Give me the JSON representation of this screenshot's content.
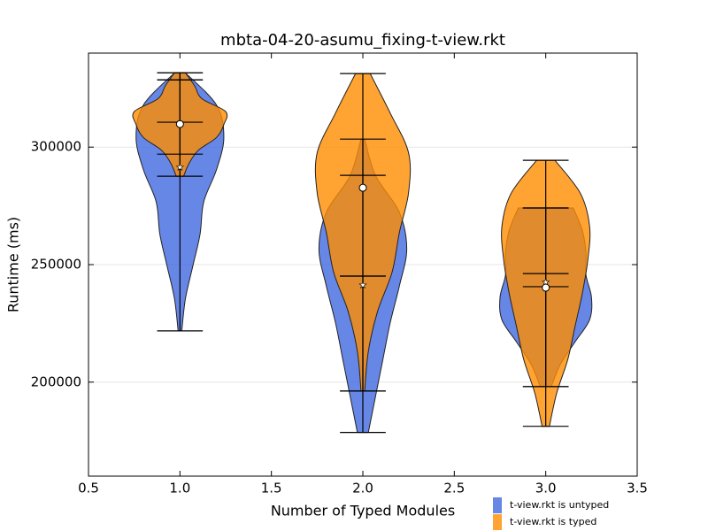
{
  "chart_data": {
    "type": "violin",
    "title": "mbta-04-20-asumu_fixing-t-view.rkt",
    "xlabel": "Number of Typed Modules",
    "ylabel": "Runtime (ms)",
    "xlim": [
      0.5,
      3.5
    ],
    "xticks": [
      {
        "value": 0.5,
        "label": "0.5"
      },
      {
        "value": 1,
        "label": "1.0"
      },
      {
        "value": 1.5,
        "label": "1.5"
      },
      {
        "value": 2,
        "label": "2.0"
      },
      {
        "value": 2.5,
        "label": "2.5"
      },
      {
        "value": 3,
        "label": "3.0"
      },
      {
        "value": 3.5,
        "label": "3.5"
      }
    ],
    "ylim": [
      160000,
      340000
    ],
    "yticks": [
      200000,
      250000,
      300000
    ],
    "grid": true,
    "positions": [
      1,
      2,
      3
    ],
    "series": [
      {
        "name": "t-view.rkt is untyped",
        "color": "#4169e1",
        "marker": "star",
        "min": [
          221800,
          178600,
          198100
        ],
        "max": [
          331600,
          303400,
          274100
        ],
        "lower": [
          297000,
          196200,
          240600
        ],
        "upper": [
          328600,
          245100,
          246200
        ],
        "mean": [
          291400,
          241300,
          242500
        ],
        "profile": [
          [
            0.01,
            0.03,
            0.07,
            0.11,
            0.13,
            0.2,
            0.24,
            0.2,
            0.03
          ],
          [
            0.03,
            0.07,
            0.11,
            0.15,
            0.2,
            0.24,
            0.2,
            0.07,
            0.01
          ],
          [
            0.03,
            0.08,
            0.16,
            0.24,
            0.25,
            0.22,
            0.22,
            0.2,
            0.15
          ]
        ]
      },
      {
        "name": "t-view.rkt is typed",
        "color": "#ff8c00",
        "marker": "circle",
        "min": [
          287600,
          196200,
          181200
        ],
        "max": [
          331600,
          331300,
          294400
        ],
        "lower": [
          310600,
          245100,
          198100
        ],
        "upper": [
          328600,
          288000,
          274100
        ],
        "mean": [
          309800,
          282700,
          240200
        ],
        "profile": [
          [
            0.02,
            0.05,
            0.1,
            0.2,
            0.24,
            0.25,
            0.12,
            0.08,
            0.03
          ],
          [
            0.01,
            0.03,
            0.08,
            0.16,
            0.2,
            0.25,
            0.25,
            0.15,
            0.04
          ],
          [
            0.02,
            0.06,
            0.12,
            0.16,
            0.2,
            0.23,
            0.24,
            0.19,
            0.05
          ]
        ]
      }
    ]
  }
}
